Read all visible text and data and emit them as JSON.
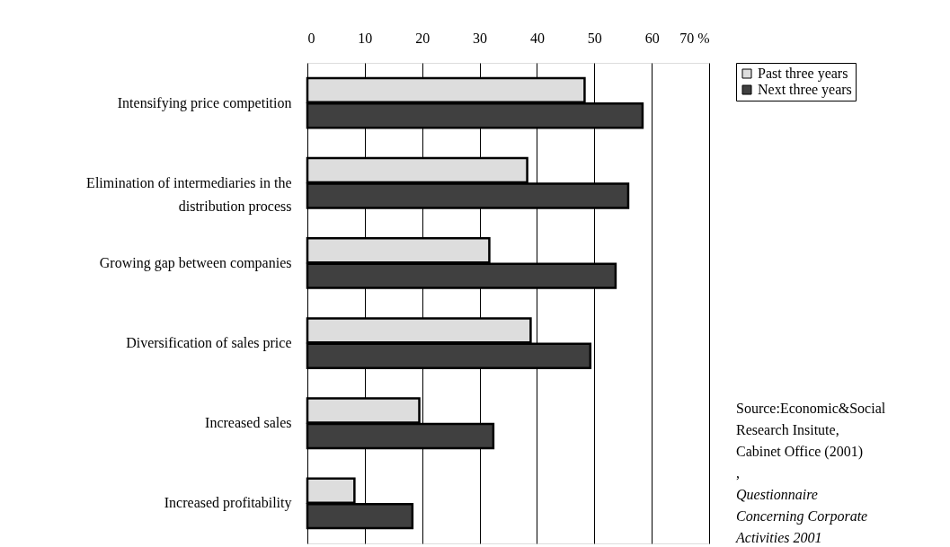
{
  "chart_data": {
    "type": "bar",
    "orientation": "horizontal",
    "categories": [
      "Intensifying price competition",
      "Elimination of intermediaries in the distribution process",
      "Growing gap between companies",
      "Diversification of sales price",
      "Increased sales",
      "Increased profitability"
    ],
    "series": [
      {
        "name": "Past three years",
        "color": "#dddddd",
        "values": [
          48.3,
          38.3,
          31.7,
          38.9,
          19.5,
          8.2
        ]
      },
      {
        "name": "Next three years",
        "color": "#404040",
        "values": [
          58.4,
          55.9,
          53.7,
          49.3,
          32.4,
          18.3
        ]
      }
    ],
    "xlim": [
      0,
      70
    ],
    "xticks": [
      0,
      10,
      20,
      30,
      40,
      50,
      60,
      {
        "value": 70,
        "label": "70 %"
      }
    ],
    "grid": "x",
    "legend": "top right",
    "annotations": [
      "Source:Economic&Social Research Insitute, Cabinet Office (2001) ,",
      "Questionnaire Concerning Corporate Activities 2001"
    ]
  }
}
